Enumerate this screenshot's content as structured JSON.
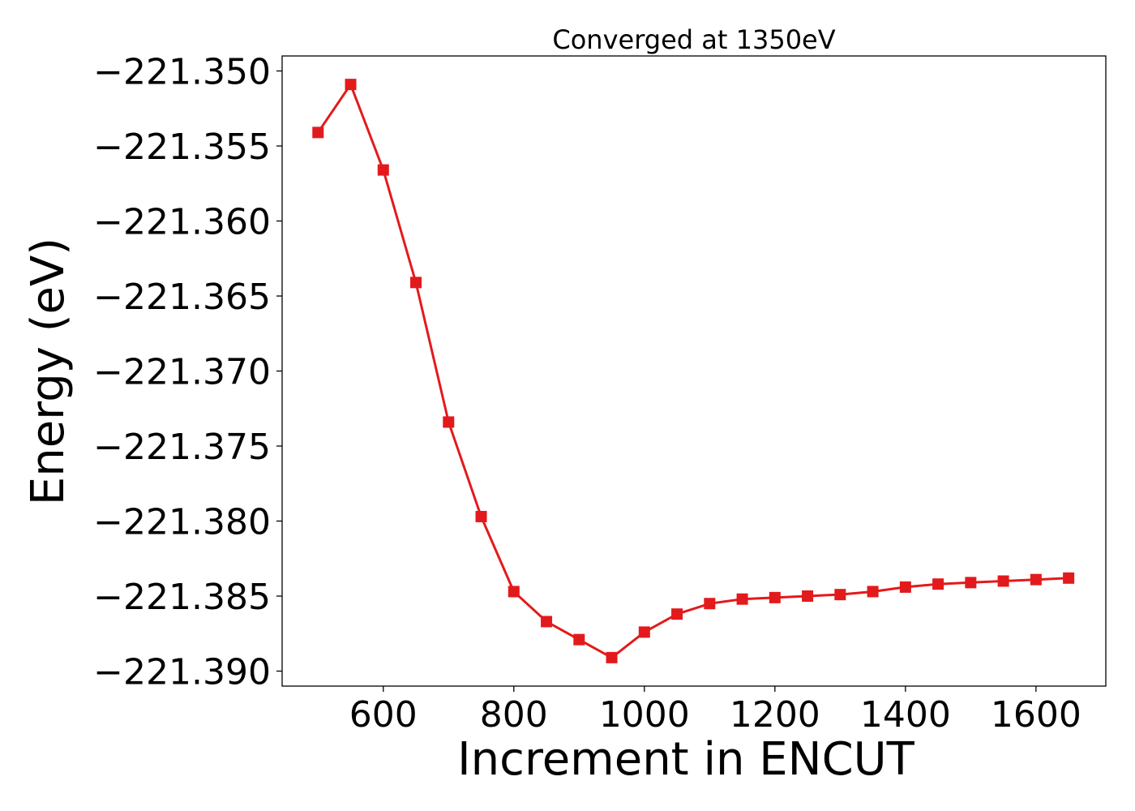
{
  "chart_data": {
    "type": "line",
    "title": "Converged at 1350eV",
    "xlabel": "Increment in ENCUT",
    "ylabel": "Energy (eV)",
    "xlim": [
      445,
      1707
    ],
    "ylim": [
      -221.391,
      -221.349
    ],
    "xticks": [
      600,
      800,
      1000,
      1200,
      1400,
      1600
    ],
    "xtick_labels": [
      "600",
      "800",
      "1000",
      "1200",
      "1400",
      "1600"
    ],
    "yticks": [
      -221.35,
      -221.355,
      -221.36,
      -221.365,
      -221.37,
      -221.375,
      -221.38,
      -221.385,
      -221.39
    ],
    "ytick_labels": [
      "−221.350",
      "−221.355",
      "−221.360",
      "−221.365",
      "−221.370",
      "−221.375",
      "−221.380",
      "−221.385",
      "−221.390"
    ],
    "grid": false,
    "series": [
      {
        "color": "#e31a1c",
        "marker": "square",
        "x": [
          500,
          550,
          600,
          650,
          700,
          750,
          800,
          850,
          900,
          950,
          1000,
          1050,
          1100,
          1150,
          1200,
          1250,
          1300,
          1350,
          1400,
          1450,
          1500,
          1550,
          1600,
          1650
        ],
        "y": [
          -221.3541,
          -221.3509,
          -221.3566,
          -221.3641,
          -221.3734,
          -221.3797,
          -221.3847,
          -221.3867,
          -221.3879,
          -221.3891,
          -221.3874,
          -221.3862,
          -221.3855,
          -221.3852,
          -221.3851,
          -221.385,
          -221.3849,
          -221.3847,
          -221.3844,
          -221.3842,
          -221.3841,
          -221.384,
          -221.3839,
          -221.3838
        ]
      }
    ]
  }
}
